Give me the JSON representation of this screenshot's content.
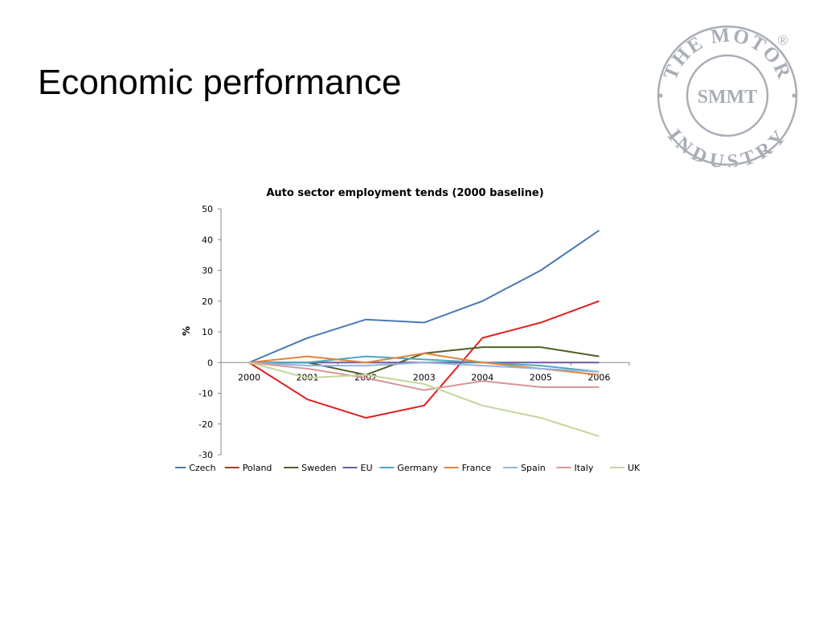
{
  "slide": {
    "title": "Economic performance"
  },
  "logo": {
    "ring_text_top": "THE MOTOR",
    "ring_text_bottom": "INDUSTRY",
    "center_text": "SMMT",
    "registered_mark": "®",
    "color": "#a9aeb6"
  },
  "chart_data": {
    "type": "line",
    "title": "Auto sector employment tends (2000 baseline)",
    "ylabel": "%",
    "xlabel": "",
    "categories": [
      "2000",
      "2001",
      "2002",
      "2003",
      "2004",
      "2005",
      "2006"
    ],
    "ylim": [
      -30,
      50
    ],
    "yticks": [
      50,
      40,
      30,
      20,
      10,
      0,
      -10,
      -20,
      -30
    ],
    "grid": false,
    "legend_position": "bottom",
    "series": [
      {
        "name": "Czech",
        "color": "#4a7ab0",
        "values": [
          0,
          8,
          14,
          13,
          20,
          30,
          43
        ]
      },
      {
        "name": "Poland",
        "color": "#e02020",
        "values": [
          0,
          -12,
          -18,
          -14,
          8,
          13,
          20
        ]
      },
      {
        "name": "Sweden",
        "color": "#4e6128",
        "values": [
          0,
          0,
          -4,
          3,
          5,
          5,
          2
        ]
      },
      {
        "name": "EU",
        "color": "#7057a0",
        "values": [
          0,
          0,
          0,
          0,
          0,
          0,
          0
        ]
      },
      {
        "name": "Germany",
        "color": "#4aaac4",
        "values": [
          0,
          0,
          2,
          1,
          0,
          -1,
          -3
        ]
      },
      {
        "name": "France",
        "color": "#e3843a",
        "values": [
          0,
          2,
          0,
          3,
          0,
          -2,
          -4
        ]
      },
      {
        "name": "Spain",
        "color": "#94b4dc",
        "values": [
          0,
          -1,
          -1,
          0,
          -1,
          -2,
          -3
        ]
      },
      {
        "name": "Italy",
        "color": "#d99694",
        "values": [
          0,
          -2,
          -5,
          -9,
          -6,
          -8,
          -8
        ]
      },
      {
        "name": "UK",
        "color": "#c3d69b",
        "values": [
          0,
          -5,
          -4,
          -7,
          -14,
          -18,
          -24
        ]
      }
    ]
  }
}
